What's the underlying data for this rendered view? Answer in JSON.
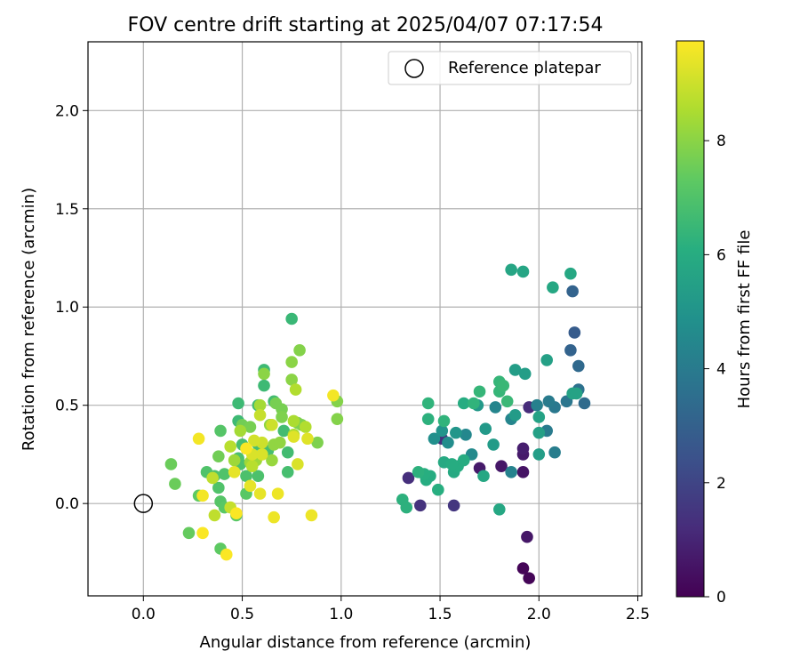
{
  "chart_data": {
    "type": "scatter",
    "title": "FOV centre drift starting at 2025/04/07 07:17:54",
    "xlabel": "Angular distance from reference (arcmin)",
    "ylabel": "Rotation from reference (arcmin)",
    "xlim": [
      -0.28,
      2.52
    ],
    "ylim": [
      -0.47,
      2.35
    ],
    "xticks": [
      0.0,
      0.5,
      1.0,
      1.5,
      2.0,
      2.5
    ],
    "xtick_labels": [
      "0.0",
      "0.5",
      "1.0",
      "1.5",
      "2.0",
      "2.5"
    ],
    "yticks": [
      0.0,
      0.5,
      1.0,
      1.5,
      2.0
    ],
    "ytick_labels": [
      "0.0",
      "0.5",
      "1.0",
      "1.5",
      "2.0"
    ],
    "grid": true,
    "legend": {
      "position": "upper-right",
      "entries": [
        "Reference platepar"
      ]
    },
    "reference_point": {
      "x": 0.0,
      "y": 0.0
    },
    "colorbar": {
      "label": "Hours from first FF file",
      "min": 0,
      "max": 9.75,
      "ticks": [
        0,
        2,
        4,
        6,
        8
      ],
      "tick_labels": [
        "0",
        "2",
        "4",
        "6",
        "8"
      ],
      "colormap": "viridis"
    },
    "points": [
      {
        "x": 1.92,
        "y": -0.33,
        "c": 0.1
      },
      {
        "x": 1.95,
        "y": -0.38,
        "c": 0.1
      },
      {
        "x": 1.94,
        "y": -0.17,
        "c": 0.6
      },
      {
        "x": 1.92,
        "y": 0.16,
        "c": 0.5
      },
      {
        "x": 1.92,
        "y": 0.25,
        "c": 0.7
      },
      {
        "x": 1.92,
        "y": 0.28,
        "c": 0.8
      },
      {
        "x": 1.81,
        "y": 0.19,
        "c": 0.6
      },
      {
        "x": 1.7,
        "y": 0.18,
        "c": 0.7
      },
      {
        "x": 1.34,
        "y": 0.13,
        "c": 1.3
      },
      {
        "x": 1.4,
        "y": -0.01,
        "c": 1.4
      },
      {
        "x": 1.57,
        "y": -0.01,
        "c": 1.5
      },
      {
        "x": 1.51,
        "y": 0.33,
        "c": 1.3
      },
      {
        "x": 1.95,
        "y": 0.49,
        "c": 1.2
      },
      {
        "x": 2.18,
        "y": 0.87,
        "c": 2.8
      },
      {
        "x": 2.17,
        "y": 1.08,
        "c": 3.1
      },
      {
        "x": 2.16,
        "y": 0.78,
        "c": 3.1
      },
      {
        "x": 2.2,
        "y": 0.7,
        "c": 3.3
      },
      {
        "x": 2.23,
        "y": 0.51,
        "c": 3.4
      },
      {
        "x": 2.2,
        "y": 0.58,
        "c": 3.6
      },
      {
        "x": 2.14,
        "y": 0.52,
        "c": 3.8
      },
      {
        "x": 2.08,
        "y": 0.49,
        "c": 3.9
      },
      {
        "x": 2.05,
        "y": 0.52,
        "c": 4.0
      },
      {
        "x": 2.04,
        "y": 0.37,
        "c": 4.0
      },
      {
        "x": 2.08,
        "y": 0.26,
        "c": 4.1
      },
      {
        "x": 1.99,
        "y": 0.5,
        "c": 4.2
      },
      {
        "x": 1.86,
        "y": 0.16,
        "c": 4.3
      },
      {
        "x": 1.86,
        "y": 0.43,
        "c": 4.4
      },
      {
        "x": 1.78,
        "y": 0.49,
        "c": 4.4
      },
      {
        "x": 1.63,
        "y": 0.35,
        "c": 4.5
      },
      {
        "x": 1.66,
        "y": 0.25,
        "c": 4.6
      },
      {
        "x": 1.54,
        "y": 0.31,
        "c": 4.7
      },
      {
        "x": 1.47,
        "y": 0.33,
        "c": 4.8
      },
      {
        "x": 1.51,
        "y": 0.37,
        "c": 5.0
      },
      {
        "x": 1.58,
        "y": 0.36,
        "c": 5.1
      },
      {
        "x": 1.69,
        "y": 0.5,
        "c": 5.2
      },
      {
        "x": 1.73,
        "y": 0.38,
        "c": 5.2
      },
      {
        "x": 1.77,
        "y": 0.3,
        "c": 5.3
      },
      {
        "x": 1.88,
        "y": 0.45,
        "c": 5.3
      },
      {
        "x": 1.88,
        "y": 0.68,
        "c": 5.4
      },
      {
        "x": 1.93,
        "y": 0.66,
        "c": 5.4
      },
      {
        "x": 2.0,
        "y": 0.25,
        "c": 5.4
      },
      {
        "x": 2.0,
        "y": 0.36,
        "c": 5.5
      },
      {
        "x": 2.04,
        "y": 0.73,
        "c": 5.5
      },
      {
        "x": 2.0,
        "y": 0.44,
        "c": 5.6
      },
      {
        "x": 2.17,
        "y": 0.56,
        "c": 5.6
      },
      {
        "x": 2.19,
        "y": 0.56,
        "c": 5.6
      },
      {
        "x": 1.86,
        "y": 1.19,
        "c": 5.7
      },
      {
        "x": 1.92,
        "y": 1.18,
        "c": 5.7
      },
      {
        "x": 2.07,
        "y": 1.1,
        "c": 5.8
      },
      {
        "x": 2.16,
        "y": 1.17,
        "c": 5.8
      },
      {
        "x": 1.8,
        "y": -0.03,
        "c": 5.8
      },
      {
        "x": 1.72,
        "y": 0.14,
        "c": 5.8
      },
      {
        "x": 1.52,
        "y": 0.21,
        "c": 5.9
      },
      {
        "x": 1.57,
        "y": 0.16,
        "c": 5.9
      },
      {
        "x": 1.59,
        "y": 0.19,
        "c": 6.0
      },
      {
        "x": 1.62,
        "y": 0.22,
        "c": 6.0
      },
      {
        "x": 1.56,
        "y": 0.2,
        "c": 6.0
      },
      {
        "x": 1.62,
        "y": 0.51,
        "c": 6.0
      },
      {
        "x": 1.45,
        "y": 0.14,
        "c": 6.0
      },
      {
        "x": 1.43,
        "y": 0.12,
        "c": 6.0
      },
      {
        "x": 1.42,
        "y": 0.15,
        "c": 6.1
      },
      {
        "x": 1.49,
        "y": 0.07,
        "c": 6.1
      },
      {
        "x": 1.31,
        "y": 0.02,
        "c": 6.2
      },
      {
        "x": 1.33,
        "y": -0.02,
        "c": 6.2
      },
      {
        "x": 1.39,
        "y": 0.16,
        "c": 6.2
      },
      {
        "x": 1.44,
        "y": 0.43,
        "c": 6.2
      },
      {
        "x": 1.44,
        "y": 0.51,
        "c": 6.3
      },
      {
        "x": 1.52,
        "y": 0.42,
        "c": 6.3
      },
      {
        "x": 1.67,
        "y": 0.51,
        "c": 6.3
      },
      {
        "x": 1.7,
        "y": 0.57,
        "c": 6.4
      },
      {
        "x": 1.8,
        "y": 0.57,
        "c": 6.4
      },
      {
        "x": 1.8,
        "y": 0.62,
        "c": 6.4
      },
      {
        "x": 1.82,
        "y": 0.6,
        "c": 6.5
      },
      {
        "x": 1.84,
        "y": 0.52,
        "c": 6.5
      },
      {
        "x": 0.75,
        "y": 0.94,
        "c": 6.5
      },
      {
        "x": 0.48,
        "y": 0.51,
        "c": 6.6
      },
      {
        "x": 0.48,
        "y": 0.42,
        "c": 6.6
      },
      {
        "x": 0.61,
        "y": 0.68,
        "c": 6.6
      },
      {
        "x": 0.61,
        "y": 0.6,
        "c": 6.6
      },
      {
        "x": 0.58,
        "y": 0.5,
        "c": 6.7
      },
      {
        "x": 0.66,
        "y": 0.52,
        "c": 6.7
      },
      {
        "x": 0.71,
        "y": 0.37,
        "c": 6.7
      },
      {
        "x": 0.73,
        "y": 0.26,
        "c": 6.7
      },
      {
        "x": 0.73,
        "y": 0.16,
        "c": 6.8
      },
      {
        "x": 0.63,
        "y": 0.27,
        "c": 6.8
      },
      {
        "x": 0.58,
        "y": 0.3,
        "c": 6.8
      },
      {
        "x": 0.5,
        "y": 0.3,
        "c": 6.8
      },
      {
        "x": 0.48,
        "y": 0.23,
        "c": 6.9
      },
      {
        "x": 0.49,
        "y": 0.2,
        "c": 6.9
      },
      {
        "x": 0.52,
        "y": 0.14,
        "c": 6.9
      },
      {
        "x": 0.58,
        "y": 0.14,
        "c": 6.9
      },
      {
        "x": 0.38,
        "y": 0.08,
        "c": 7.0
      },
      {
        "x": 0.41,
        "y": 0.15,
        "c": 7.0
      },
      {
        "x": 0.36,
        "y": 0.14,
        "c": 7.0
      },
      {
        "x": 0.32,
        "y": 0.16,
        "c": 7.0
      },
      {
        "x": 0.39,
        "y": 0.37,
        "c": 7.1
      },
      {
        "x": 0.39,
        "y": 0.01,
        "c": 7.1
      },
      {
        "x": 0.41,
        "y": -0.02,
        "c": 7.2
      },
      {
        "x": 0.47,
        "y": -0.06,
        "c": 7.2
      },
      {
        "x": 0.52,
        "y": 0.05,
        "c": 7.2
      },
      {
        "x": 0.28,
        "y": 0.04,
        "c": 7.3
      },
      {
        "x": 0.39,
        "y": -0.23,
        "c": 7.3
      },
      {
        "x": 0.23,
        "y": -0.15,
        "c": 7.4
      },
      {
        "x": 0.16,
        "y": 0.1,
        "c": 7.5
      },
      {
        "x": 0.14,
        "y": 0.2,
        "c": 7.5
      },
      {
        "x": 0.38,
        "y": 0.24,
        "c": 7.6
      },
      {
        "x": 0.5,
        "y": 0.4,
        "c": 7.6
      },
      {
        "x": 0.54,
        "y": 0.39,
        "c": 7.7
      },
      {
        "x": 0.67,
        "y": 0.51,
        "c": 7.7
      },
      {
        "x": 0.7,
        "y": 0.48,
        "c": 7.7
      },
      {
        "x": 0.7,
        "y": 0.44,
        "c": 7.8
      },
      {
        "x": 0.78,
        "y": 0.41,
        "c": 7.8
      },
      {
        "x": 0.8,
        "y": 0.4,
        "c": 7.8
      },
      {
        "x": 0.88,
        "y": 0.31,
        "c": 7.8
      },
      {
        "x": 0.98,
        "y": 0.52,
        "c": 7.9
      },
      {
        "x": 0.98,
        "y": 0.43,
        "c": 7.9
      },
      {
        "x": 0.79,
        "y": 0.78,
        "c": 7.9
      },
      {
        "x": 0.75,
        "y": 0.72,
        "c": 8.0
      },
      {
        "x": 0.75,
        "y": 0.63,
        "c": 8.0
      },
      {
        "x": 0.61,
        "y": 0.66,
        "c": 8.0
      },
      {
        "x": 0.64,
        "y": 0.4,
        "c": 8.1
      },
      {
        "x": 0.66,
        "y": 0.3,
        "c": 8.1
      },
      {
        "x": 0.69,
        "y": 0.31,
        "c": 8.1
      },
      {
        "x": 0.65,
        "y": 0.22,
        "c": 8.2
      },
      {
        "x": 0.6,
        "y": 0.25,
        "c": 8.2
      },
      {
        "x": 0.57,
        "y": 0.22,
        "c": 8.3
      },
      {
        "x": 0.54,
        "y": 0.21,
        "c": 8.3
      },
      {
        "x": 0.46,
        "y": 0.22,
        "c": 8.3
      },
      {
        "x": 0.49,
        "y": 0.37,
        "c": 8.4
      },
      {
        "x": 0.59,
        "y": 0.5,
        "c": 8.4
      },
      {
        "x": 0.76,
        "y": 0.35,
        "c": 8.5
      },
      {
        "x": 0.76,
        "y": 0.42,
        "c": 8.5
      },
      {
        "x": 0.82,
        "y": 0.39,
        "c": 8.6
      },
      {
        "x": 0.77,
        "y": 0.58,
        "c": 8.6
      },
      {
        "x": 0.44,
        "y": 0.29,
        "c": 8.7
      },
      {
        "x": 0.55,
        "y": 0.19,
        "c": 8.7
      },
      {
        "x": 0.35,
        "y": 0.13,
        "c": 8.8
      },
      {
        "x": 0.36,
        "y": -0.06,
        "c": 8.8
      },
      {
        "x": 0.44,
        "y": -0.02,
        "c": 8.9
      },
      {
        "x": 0.59,
        "y": 0.45,
        "c": 8.9
      },
      {
        "x": 0.65,
        "y": 0.4,
        "c": 9.0
      },
      {
        "x": 0.6,
        "y": 0.31,
        "c": 9.0
      },
      {
        "x": 0.56,
        "y": 0.32,
        "c": 9.1
      },
      {
        "x": 0.55,
        "y": 0.25,
        "c": 9.2
      },
      {
        "x": 0.6,
        "y": 0.25,
        "c": 9.2
      },
      {
        "x": 0.78,
        "y": 0.2,
        "c": 9.2
      },
      {
        "x": 0.83,
        "y": 0.33,
        "c": 9.3
      },
      {
        "x": 0.76,
        "y": 0.34,
        "c": 9.3
      },
      {
        "x": 0.46,
        "y": 0.16,
        "c": 9.4
      },
      {
        "x": 0.54,
        "y": 0.09,
        "c": 9.4
      },
      {
        "x": 0.59,
        "y": 0.05,
        "c": 9.4
      },
      {
        "x": 0.68,
        "y": 0.05,
        "c": 9.5
      },
      {
        "x": 0.66,
        "y": -0.07,
        "c": 9.5
      },
      {
        "x": 0.85,
        "y": -0.06,
        "c": 9.5
      },
      {
        "x": 0.96,
        "y": 0.55,
        "c": 9.6
      },
      {
        "x": 0.28,
        "y": 0.33,
        "c": 9.6
      },
      {
        "x": 0.3,
        "y": 0.04,
        "c": 9.6
      },
      {
        "x": 0.3,
        "y": -0.15,
        "c": 9.7
      },
      {
        "x": 0.42,
        "y": -0.26,
        "c": 9.7
      },
      {
        "x": 0.47,
        "y": -0.05,
        "c": 9.7
      },
      {
        "x": 0.52,
        "y": 0.28,
        "c": 9.7
      }
    ]
  }
}
